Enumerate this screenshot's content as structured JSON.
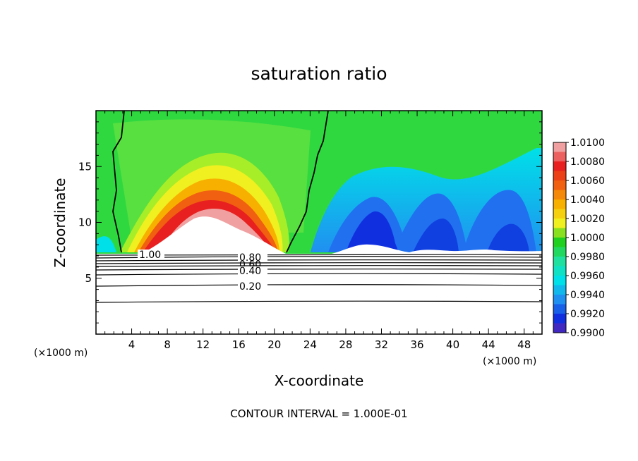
{
  "chart_data": {
    "type": "heatmap",
    "title": "saturation ratio",
    "xlabel": "X-coordinate",
    "ylabel": "Z-coordinate",
    "x_unit": "(×1000 m)",
    "z_unit": "(×1000 m)",
    "xlim": [
      0,
      50
    ],
    "ylim": [
      0,
      20
    ],
    "x_ticks": [
      "4",
      "8",
      "12",
      "16",
      "20",
      "24",
      "28",
      "32",
      "36",
      "40",
      "44",
      "48"
    ],
    "y_ticks": [
      "5",
      "10",
      "15"
    ],
    "colorbar": {
      "labels": [
        "1.0100",
        "1.0080",
        "1.0060",
        "1.0040",
        "1.0020",
        "1.0000",
        "0.9980",
        "0.9960",
        "0.9940",
        "0.9920",
        "0.9900"
      ],
      "min": 0.99,
      "max": 1.01,
      "levels": 20
    },
    "contour_labels": [
      "1.00",
      "0.80",
      "0.60",
      "0.40",
      "0.20"
    ],
    "contour_interval_text": "CONTOUR INTERVAL = 1.000E-01",
    "colors": {
      "1.0100": "#f0a0a0",
      "1.0080": "#e82020",
      "1.0060": "#f06010",
      "1.0040": "#f8b000",
      "1.0020": "#f0f020",
      "1.0000": "#20d020",
      "0.9980": "#20e0a0",
      "0.9960": "#00e0e8",
      "0.9940": "#2090f0",
      "0.9920": "#1030e0",
      "0.9900": "#7020a0"
    }
  }
}
